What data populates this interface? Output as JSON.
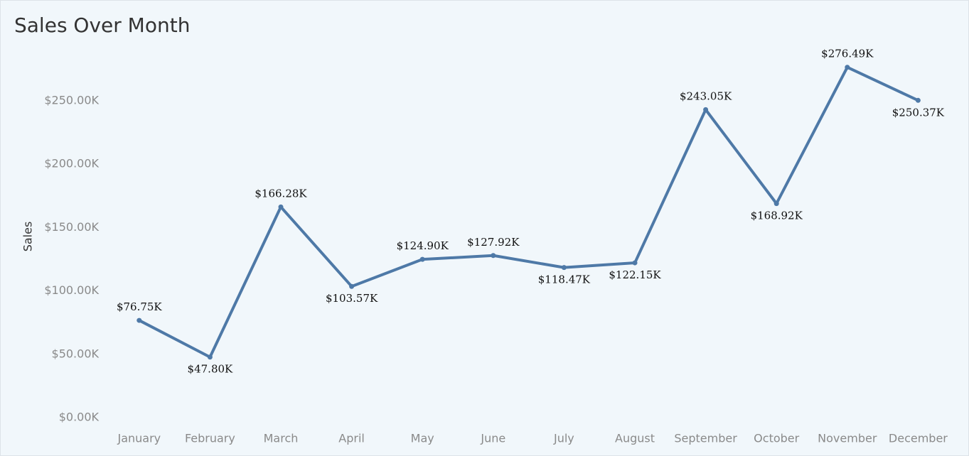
{
  "chart_data": {
    "type": "line",
    "title": "Sales Over Month",
    "y_label": "Sales",
    "categories": [
      "January",
      "February",
      "March",
      "April",
      "May",
      "June",
      "July",
      "August",
      "September",
      "October",
      "November",
      "December"
    ],
    "series": [
      {
        "name": "Sales",
        "color": "#4e79a7",
        "values": [
          76750,
          47800,
          166280,
          103570,
          124900,
          127920,
          118470,
          122150,
          243050,
          168920,
          276490,
          250370
        ],
        "value_labels": [
          "$76.75K",
          "$47.80K",
          "$166.28K",
          "$103.57K",
          "$124.90K",
          "$127.92K",
          "$118.47K",
          "$122.15K",
          "$243.05K",
          "$168.92K",
          "$276.49K",
          "$250.37K"
        ]
      }
    ],
    "ylim": [
      0,
      290000
    ],
    "yticks": [
      {
        "value": 0,
        "label": "$0.00K"
      },
      {
        "value": 50000,
        "label": "$50.00K"
      },
      {
        "value": 100000,
        "label": "$100.00K"
      },
      {
        "value": 150000,
        "label": "$150.00K"
      },
      {
        "value": 200000,
        "label": "$200.00K"
      },
      {
        "value": 250000,
        "label": "$250.00K"
      }
    ]
  }
}
